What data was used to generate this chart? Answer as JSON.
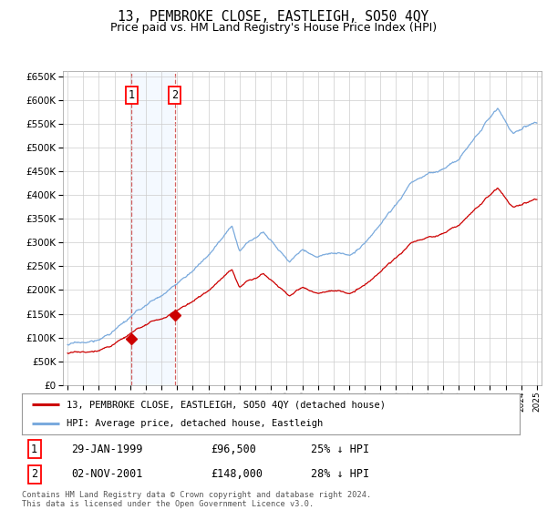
{
  "title": "13, PEMBROKE CLOSE, EASTLEIGH, SO50 4QY",
  "subtitle": "Price paid vs. HM Land Registry's House Price Index (HPI)",
  "legend_line1": "13, PEMBROKE CLOSE, EASTLEIGH, SO50 4QY (detached house)",
  "legend_line2": "HPI: Average price, detached house, Eastleigh",
  "transaction1_date": "29-JAN-1999",
  "transaction1_price": "£96,500",
  "transaction1_hpi": "25% ↓ HPI",
  "transaction1_year": 1999.08,
  "transaction1_value": 96500,
  "transaction2_date": "02-NOV-2001",
  "transaction2_price": "£148,000",
  "transaction2_hpi": "28% ↓ HPI",
  "transaction2_year": 2001.84,
  "transaction2_value": 148000,
  "line_color_red": "#cc0000",
  "line_color_blue": "#7aaadd",
  "grid_color": "#cccccc",
  "background_color": "#ffffff",
  "plot_bg_color": "#ffffff",
  "marker_fill": "#cc0000",
  "vspan_color": "#ddeeff",
  "ylim": [
    0,
    660000
  ],
  "yticks": [
    0,
    50000,
    100000,
    150000,
    200000,
    250000,
    300000,
    350000,
    400000,
    450000,
    500000,
    550000,
    600000,
    650000
  ],
  "xstart": 1995,
  "xend": 2025,
  "footer": "Contains HM Land Registry data © Crown copyright and database right 2024.\nThis data is licensed under the Open Government Licence v3.0."
}
